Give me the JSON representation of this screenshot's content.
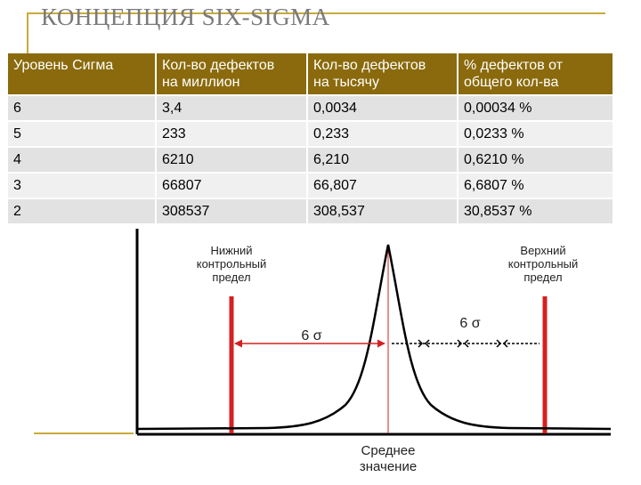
{
  "title": "КОНЦЕПЦИЯ SIX-SIGMA",
  "table": {
    "headers": [
      [
        "Уровень Сигма"
      ],
      [
        "Кол-во дефектов",
        "на миллион"
      ],
      [
        "Кол-во дефектов",
        "на тысячу"
      ],
      [
        "% дефектов от",
        "общего кол-ва"
      ]
    ],
    "rows": [
      [
        "6",
        "3,4",
        "0,0034",
        "0,00034 %"
      ],
      [
        "5",
        "233",
        "0,233",
        "0,0233 %"
      ],
      [
        "4",
        "6210",
        "6,210",
        "0,6210 %"
      ],
      [
        "3",
        "66807",
        "66,807",
        "6,6807 %"
      ],
      [
        "2",
        "308537",
        "308,537",
        "30,8537 %"
      ]
    ]
  },
  "figure": {
    "lower_limit_label": [
      "Нижний",
      "контрольный",
      "предел"
    ],
    "upper_limit_label": [
      "Верхний",
      "контрольный",
      "предел"
    ],
    "left_sigma_label": "6 σ",
    "right_sigma_label": "6 σ",
    "mean_label": [
      "Среднее",
      "значение"
    ],
    "colors": {
      "limit": "#d42020",
      "curve": "#000000",
      "axis": "#000000"
    }
  }
}
